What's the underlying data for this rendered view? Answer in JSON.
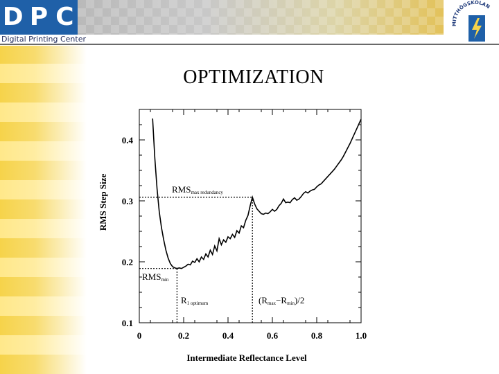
{
  "header": {
    "logo_letters": [
      "D",
      "P",
      "C"
    ],
    "logo_subtitle": "Digital Printing Center",
    "emblem_text": "MITTHÖGSKOLAN"
  },
  "slide": {
    "title": "OPTIMIZATION"
  },
  "colors": {
    "logo_blue": "#1f60a8",
    "accent_yellow": "#f6d34a",
    "curve": "#000000"
  },
  "chart_data": {
    "type": "line",
    "title": "",
    "xlabel": "Intermediate Reflectance Level",
    "ylabel": "RMS Step Size",
    "xlim": [
      0,
      1.0
    ],
    "ylim": [
      0.1,
      0.45
    ],
    "x_ticks": [
      0,
      0.2,
      0.4,
      0.6,
      0.8,
      1.0
    ],
    "x_tick_labels": [
      "0",
      "0.2",
      "0.4",
      "0.6",
      "0.8",
      "1.0"
    ],
    "y_ticks": [
      0.1,
      0.2,
      0.3,
      0.4
    ],
    "y_tick_labels": [
      "0.1",
      "0.2",
      "0.3",
      "0.4"
    ],
    "grid": false,
    "legend": "none",
    "series": [
      {
        "x": [
          0.06,
          0.07,
          0.08,
          0.09,
          0.1,
          0.11,
          0.12,
          0.13,
          0.14,
          0.15,
          0.16,
          0.17,
          0.18,
          0.19,
          0.2,
          0.21,
          0.22,
          0.23,
          0.24,
          0.25,
          0.26,
          0.27,
          0.28,
          0.29,
          0.3,
          0.31,
          0.32,
          0.33,
          0.34,
          0.35,
          0.36,
          0.37,
          0.38,
          0.39,
          0.4,
          0.41,
          0.42,
          0.43,
          0.44,
          0.45,
          0.46,
          0.47,
          0.48,
          0.49,
          0.5,
          0.51,
          0.52,
          0.53,
          0.54,
          0.55,
          0.56,
          0.57,
          0.58,
          0.59,
          0.6,
          0.61,
          0.62,
          0.63,
          0.64,
          0.65,
          0.66,
          0.67,
          0.68,
          0.69,
          0.7,
          0.71,
          0.72,
          0.73,
          0.74,
          0.75,
          0.76,
          0.77,
          0.78,
          0.79,
          0.8,
          0.81,
          0.82,
          0.83,
          0.84,
          0.85,
          0.86,
          0.87,
          0.88,
          0.89,
          0.9,
          0.91,
          0.92,
          0.93,
          0.94,
          0.95,
          0.96,
          0.97,
          0.98,
          0.99,
          1.0
        ],
        "y": [
          0.435,
          0.37,
          0.32,
          0.282,
          0.256,
          0.236,
          0.219,
          0.206,
          0.197,
          0.192,
          0.19,
          0.189,
          0.19,
          0.189,
          0.191,
          0.193,
          0.196,
          0.195,
          0.201,
          0.199,
          0.205,
          0.2,
          0.208,
          0.204,
          0.213,
          0.208,
          0.219,
          0.212,
          0.226,
          0.218,
          0.238,
          0.228,
          0.236,
          0.232,
          0.241,
          0.238,
          0.245,
          0.24,
          0.251,
          0.247,
          0.259,
          0.256,
          0.268,
          0.276,
          0.292,
          0.306,
          0.295,
          0.287,
          0.283,
          0.279,
          0.278,
          0.28,
          0.279,
          0.282,
          0.286,
          0.283,
          0.286,
          0.292,
          0.296,
          0.303,
          0.297,
          0.298,
          0.297,
          0.302,
          0.305,
          0.301,
          0.303,
          0.307,
          0.312,
          0.315,
          0.313,
          0.316,
          0.318,
          0.319,
          0.323,
          0.326,
          0.328,
          0.332,
          0.336,
          0.34,
          0.344,
          0.348,
          0.352,
          0.357,
          0.362,
          0.367,
          0.373,
          0.38,
          0.387,
          0.394,
          0.402,
          0.41,
          0.418,
          0.426,
          0.434
        ]
      }
    ],
    "reference_lines": [
      {
        "orientation": "h",
        "y": 0.306,
        "x_range": [
          0,
          0.51
        ]
      },
      {
        "orientation": "v",
        "x": 0.51,
        "y_range": [
          0.1,
          0.306
        ]
      },
      {
        "orientation": "h",
        "y": 0.189,
        "x_range": [
          0,
          0.17
        ]
      },
      {
        "orientation": "v",
        "x": 0.17,
        "y_range": [
          0.1,
          0.189
        ]
      }
    ],
    "annotations": [
      {
        "main": "RMS",
        "sub": "max redundancy"
      },
      {
        "main": "RMS",
        "sub": "min"
      },
      {
        "main": "R",
        "sub": "1 optimum"
      },
      {
        "main": "(R",
        "sub1": "max",
        "mid": "−R",
        "sub2": "min",
        "tail": ")/2"
      }
    ]
  }
}
